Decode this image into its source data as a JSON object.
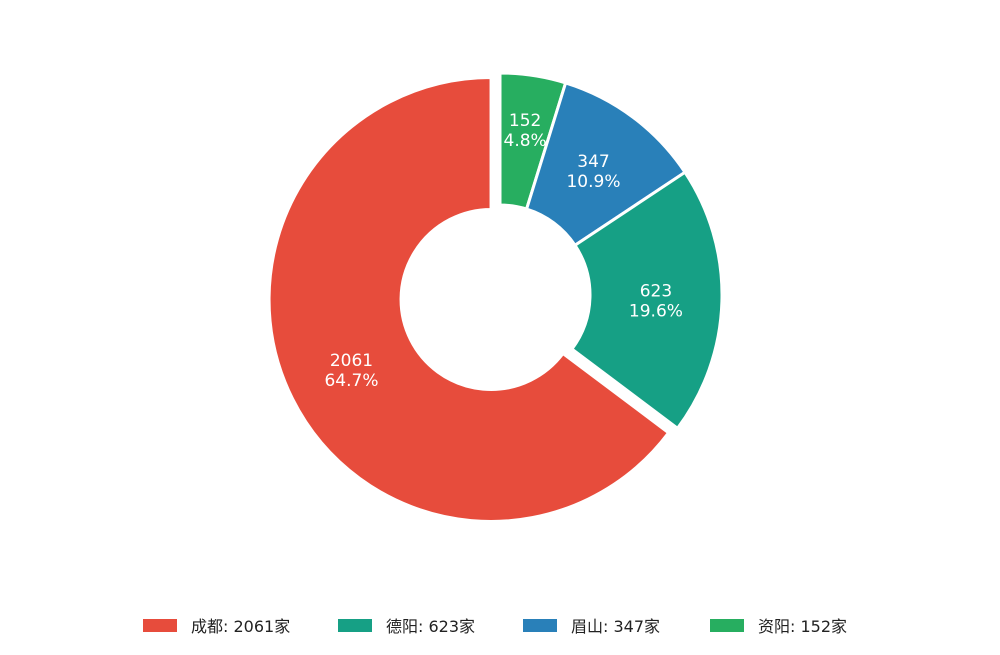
{
  "chart_data": {
    "type": "pie",
    "style": "donut",
    "start": "12 o'clock, clockwise",
    "slices": [
      {
        "name": "资阳",
        "value": 152,
        "percent": "4.8%",
        "color": "#27ae60",
        "legend": "资阳: 152家",
        "exploded": false
      },
      {
        "name": "眉山",
        "value": 347,
        "percent": "10.9%",
        "color": "#2980b9",
        "legend": "眉山: 347家",
        "exploded": false
      },
      {
        "name": "德阳",
        "value": 623,
        "percent": "19.6%",
        "color": "#16a085",
        "legend": "德阳: 623家",
        "exploded": false
      },
      {
        "name": "成都",
        "value": 2061,
        "percent": "64.7%",
        "color": "#e74c3c",
        "legend": "成都: 2061家",
        "exploded": true
      }
    ],
    "legend_order": [
      "成都",
      "德阳",
      "眉山",
      "资阳"
    ],
    "legend_placement": "bottom"
  }
}
